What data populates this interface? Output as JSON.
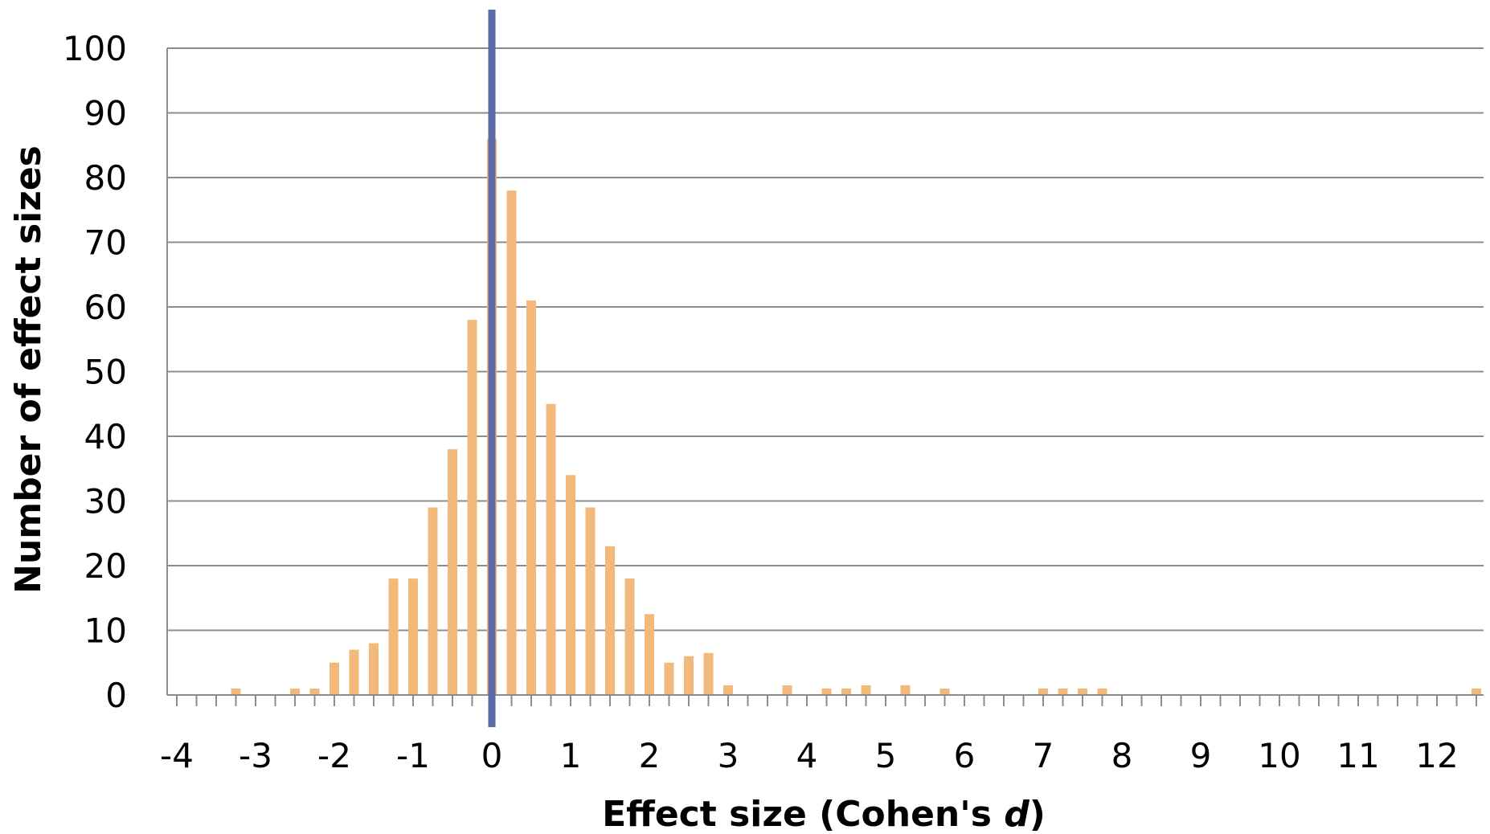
{
  "chart_data": {
    "type": "bar",
    "title": "",
    "xlabel": {
      "prefix": "Effect size (Cohen's ",
      "italic": "d",
      "suffix": ")"
    },
    "ylabel": "Number of effect sizes",
    "xlim": [
      -4,
      12.75
    ],
    "ylim": [
      0,
      100
    ],
    "x_ticks": [
      "-4",
      "-3",
      "-2",
      "-1",
      "0",
      "1",
      "2",
      "3",
      "4",
      "5",
      "6",
      "7",
      "8",
      "9",
      "10",
      "11",
      "12"
    ],
    "y_ticks": [
      "0",
      "10",
      "20",
      "30",
      "40",
      "50",
      "60",
      "70",
      "80",
      "90",
      "100"
    ],
    "minor_tick_step": 0.25,
    "grid": "horizontal",
    "reference_line_x": 0,
    "colors": {
      "bars": "#F2B97A",
      "reference_line": "#5B6BA8",
      "grid": "#8C8C8C",
      "axis": "#8C8C8C"
    },
    "bins": [
      {
        "x": -3.25,
        "value": 1
      },
      {
        "x": -2.5,
        "value": 1
      },
      {
        "x": -2.25,
        "value": 1
      },
      {
        "x": -2.0,
        "value": 5
      },
      {
        "x": -1.75,
        "value": 7
      },
      {
        "x": -1.5,
        "value": 8
      },
      {
        "x": -1.25,
        "value": 18
      },
      {
        "x": -1.0,
        "value": 18
      },
      {
        "x": -0.75,
        "value": 29
      },
      {
        "x": -0.5,
        "value": 38
      },
      {
        "x": -0.25,
        "value": 58
      },
      {
        "x": 0.0,
        "value": 86
      },
      {
        "x": 0.25,
        "value": 78
      },
      {
        "x": 0.5,
        "value": 61
      },
      {
        "x": 0.75,
        "value": 45
      },
      {
        "x": 1.0,
        "value": 34
      },
      {
        "x": 1.25,
        "value": 29
      },
      {
        "x": 1.5,
        "value": 23
      },
      {
        "x": 1.75,
        "value": 18
      },
      {
        "x": 2.0,
        "value": 12.5
      },
      {
        "x": 2.25,
        "value": 5
      },
      {
        "x": 2.5,
        "value": 6
      },
      {
        "x": 2.75,
        "value": 6.5
      },
      {
        "x": 3.0,
        "value": 1.5
      },
      {
        "x": 3.75,
        "value": 1.5
      },
      {
        "x": 4.25,
        "value": 1
      },
      {
        "x": 4.5,
        "value": 1
      },
      {
        "x": 4.75,
        "value": 1.5
      },
      {
        "x": 5.25,
        "value": 1.5
      },
      {
        "x": 5.75,
        "value": 1
      },
      {
        "x": 7.0,
        "value": 1
      },
      {
        "x": 7.25,
        "value": 1
      },
      {
        "x": 7.5,
        "value": 1
      },
      {
        "x": 7.75,
        "value": 1
      },
      {
        "x": 12.5,
        "value": 1
      }
    ]
  }
}
